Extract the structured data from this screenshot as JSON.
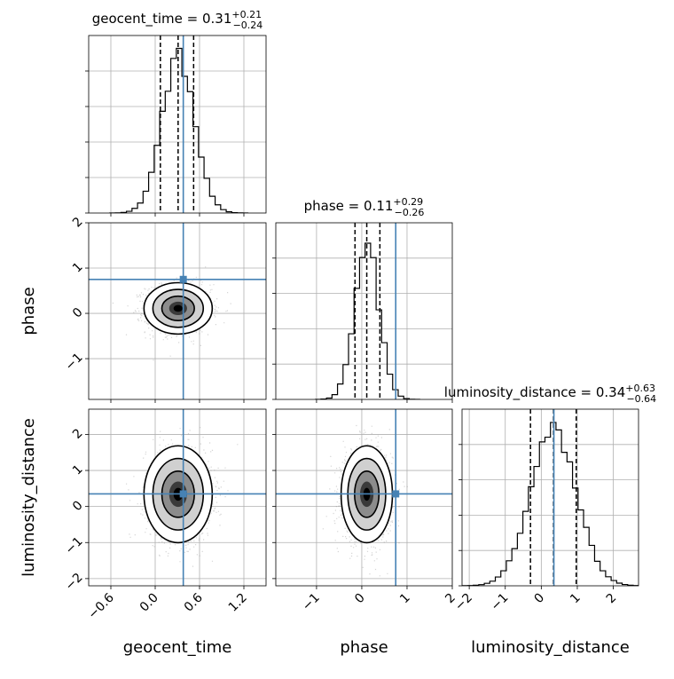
{
  "colors": {
    "truth": "#4682b4",
    "hist": "#000000",
    "grid": "#b0b0b0",
    "points": "#888888"
  },
  "chart_data": {
    "type": "corner",
    "parameters": [
      {
        "name": "geocent_time",
        "range": [
          -0.9,
          1.5
        ],
        "ticks": [
          -0.6,
          0.0,
          0.6,
          1.2
        ],
        "tick_labels": [
          "−0.6",
          "0.0",
          "0.6",
          "1.2"
        ],
        "truth": 0.38,
        "title": {
          "prefix": "geocent_time = 0.31",
          "sup": "+0.21",
          "sub": "−0.24"
        },
        "quantiles": [
          0.07,
          0.31,
          0.52
        ],
        "mean": 0.31,
        "sigma": 0.22,
        "bins": 20
      },
      {
        "name": "phase",
        "range": [
          -1.9,
          2.0
        ],
        "ticks": [
          -1,
          0,
          1,
          2
        ],
        "tick_labels": [
          "−1",
          "0",
          "1",
          "2"
        ],
        "truth": 0.75,
        "title": {
          "prefix": "phase = 0.11",
          "sup": "+0.29",
          "sub": "−0.26"
        },
        "quantiles": [
          -0.15,
          0.11,
          0.4
        ],
        "mean": 0.11,
        "sigma": 0.27,
        "bins": 20
      },
      {
        "name": "luminosity_distance",
        "range": [
          -2.2,
          2.7
        ],
        "ticks": [
          -2,
          -1,
          0,
          1,
          2
        ],
        "tick_labels": [
          "−2",
          "−1",
          "0",
          "1",
          "2"
        ],
        "truth": 0.35,
        "title": {
          "prefix": "luminosity_distance = 0.34",
          "sup": "+0.63",
          "sub": "−0.64"
        },
        "quantiles": [
          -0.3,
          0.34,
          0.97
        ],
        "mean": 0.34,
        "sigma": 0.64,
        "bins": 20
      }
    ],
    "grid": true
  }
}
